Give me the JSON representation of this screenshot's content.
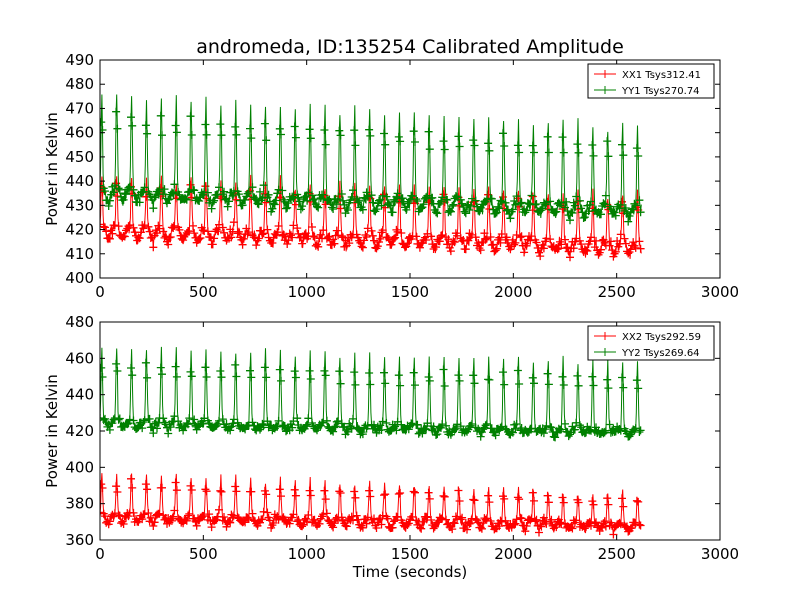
{
  "title": "andromeda, ID:135254 Calibrated Amplitude",
  "colors": {
    "xx": "#ff0000",
    "yy": "#008000",
    "axis": "#000000",
    "background": "#ffffff"
  },
  "chart_data": [
    {
      "type": "line",
      "panel": "top",
      "title": "andromeda, ID:135254 Calibrated Amplitude",
      "xlabel": "",
      "ylabel": "Power in Kelvin",
      "xlim": [
        0,
        3000
      ],
      "ylim": [
        400,
        490
      ],
      "xticks": [
        0,
        500,
        1000,
        1500,
        2000,
        2500,
        3000
      ],
      "yticks": [
        400,
        410,
        420,
        430,
        440,
        450,
        460,
        470,
        480,
        490
      ],
      "grid": false,
      "legend_position": "top-right",
      "marker": "plus",
      "series": [
        {
          "name": "XX1 Tsys312.41",
          "color": "#ff0000",
          "t_range": [
            0,
            2620
          ],
          "period": 72,
          "peak_start": 442,
          "peak_end": 435,
          "trough_start": 416,
          "trough_end": 410,
          "baseline_start": 421,
          "baseline_end": 414
        },
        {
          "name": "YY1 Tsys270.74",
          "color": "#008000",
          "t_range": [
            0,
            2620
          ],
          "period": 72,
          "peak_start": 476,
          "peak_end": 462,
          "trough_start": 432,
          "trough_end": 425,
          "baseline_start": 436,
          "baseline_end": 429
        }
      ]
    },
    {
      "type": "line",
      "panel": "bottom",
      "title": "",
      "xlabel": "Time (seconds)",
      "ylabel": "Power in Kelvin",
      "xlim": [
        0,
        3000
      ],
      "ylim": [
        360,
        480
      ],
      "xticks": [
        0,
        500,
        1000,
        1500,
        2000,
        2500,
        3000
      ],
      "yticks": [
        360,
        380,
        400,
        420,
        440,
        460,
        480
      ],
      "grid": false,
      "legend_position": "top-right",
      "marker": "plus",
      "series": [
        {
          "name": "XX2 Tsys292.59",
          "color": "#ff0000",
          "t_range": [
            0,
            2620
          ],
          "period": 72,
          "peak_start": 397,
          "peak_end": 385,
          "trough_start": 370,
          "trough_end": 365,
          "baseline_start": 374,
          "baseline_end": 369
        },
        {
          "name": "YY2 Tsys269.64",
          "color": "#008000",
          "t_range": [
            0,
            2620
          ],
          "period": 72,
          "peak_start": 466,
          "peak_end": 458,
          "trough_start": 422,
          "trough_end": 418,
          "baseline_start": 425,
          "baseline_end": 420
        }
      ]
    }
  ]
}
